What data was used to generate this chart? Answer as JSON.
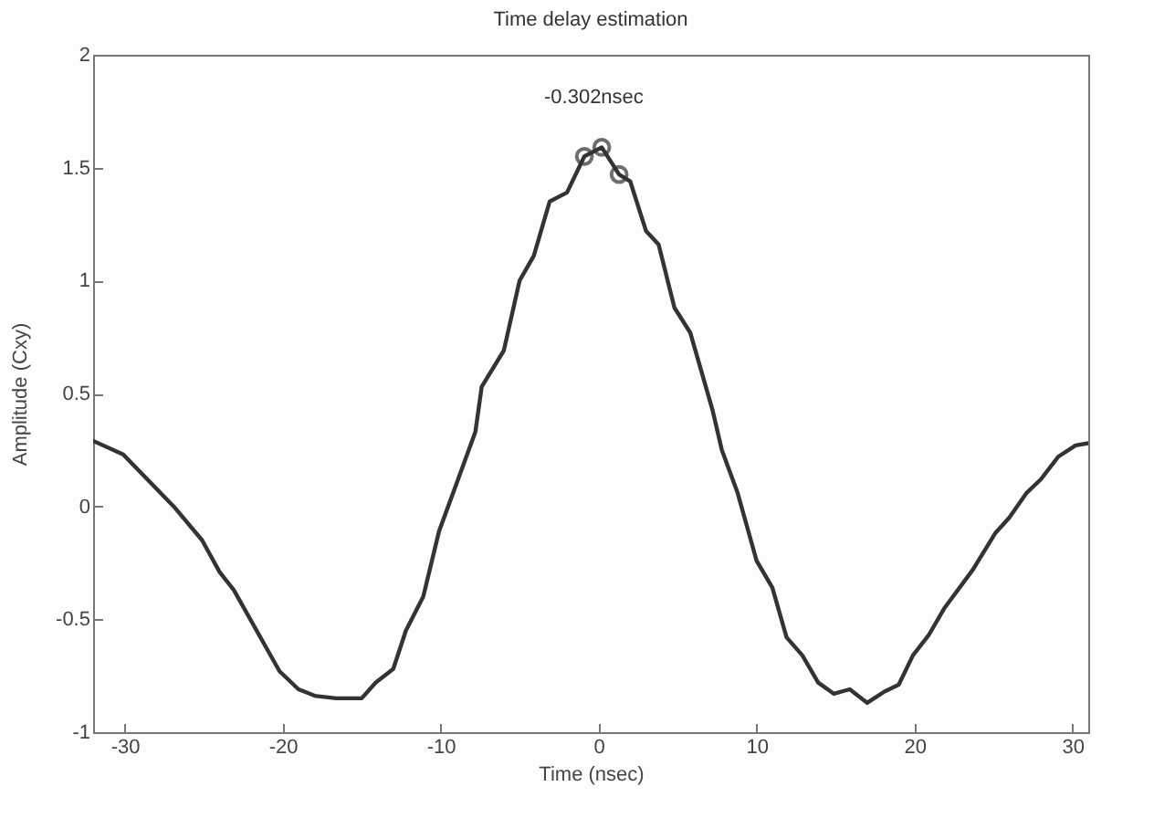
{
  "chart_data": {
    "type": "line",
    "title": "Time delay estimation",
    "xlabel": "Time (nsec)",
    "ylabel": "Amplitude (Cxy)",
    "xlim": [
      -32,
      31
    ],
    "xticks": [
      -30,
      -20,
      -10,
      0,
      10,
      20,
      30
    ],
    "ylim": [
      -1,
      2
    ],
    "yticks": [
      -1,
      -0.5,
      0,
      0.5,
      1,
      1.5,
      2
    ],
    "grid": false,
    "annotations": [
      {
        "text": "-0.302nsec",
        "x": -0.302,
        "y": 1.59
      }
    ],
    "series": [
      {
        "color": "#333333",
        "marker": "none",
        "line_style": "solid",
        "x": [
          -32,
          -30.1,
          -26.9,
          -25.1,
          -24,
          -23.1,
          -20.2,
          -19,
          -17.9,
          -16.6,
          -15,
          -14.1,
          -13,
          -12.2,
          -11.1,
          -10.1,
          -9,
          -7.8,
          -7.4,
          -6,
          -5,
          -4.1,
          -3.1,
          -2,
          -0.9,
          0.2,
          1.3,
          2,
          3,
          3.8,
          4.8,
          5.8,
          7.2,
          7.8,
          8.8,
          10,
          11,
          11.9,
          12.9,
          13.9,
          14.9,
          15.9,
          17,
          18.1,
          19,
          19.9,
          20.9,
          21.9,
          23.7,
          25.1,
          26,
          27.1,
          28,
          29.1,
          30.2,
          31
        ],
        "values": [
          0.29,
          0.23,
          0.0,
          -0.15,
          -0.29,
          -0.37,
          -0.73,
          -0.81,
          -0.84,
          -0.85,
          -0.85,
          -0.78,
          -0.72,
          -0.55,
          -0.4,
          -0.11,
          0.1,
          0.33,
          0.53,
          0.69,
          1.0,
          1.11,
          1.35,
          1.39,
          1.55,
          1.59,
          1.47,
          1.44,
          1.22,
          1.16,
          0.88,
          0.77,
          0.43,
          0.25,
          0.06,
          -0.24,
          -0.36,
          -0.58,
          -0.66,
          -0.78,
          -0.83,
          -0.81,
          -0.87,
          -0.82,
          -0.79,
          -0.66,
          -0.57,
          -0.45,
          -0.28,
          -0.12,
          -0.05,
          0.06,
          0.12,
          0.22,
          0.27,
          0.28
        ]
      },
      {
        "type": "scatter",
        "color": "#333333",
        "marker": "circle",
        "x": [
          -0.9,
          0.2,
          1.3
        ],
        "values": [
          1.55,
          1.59,
          1.47
        ]
      }
    ]
  }
}
